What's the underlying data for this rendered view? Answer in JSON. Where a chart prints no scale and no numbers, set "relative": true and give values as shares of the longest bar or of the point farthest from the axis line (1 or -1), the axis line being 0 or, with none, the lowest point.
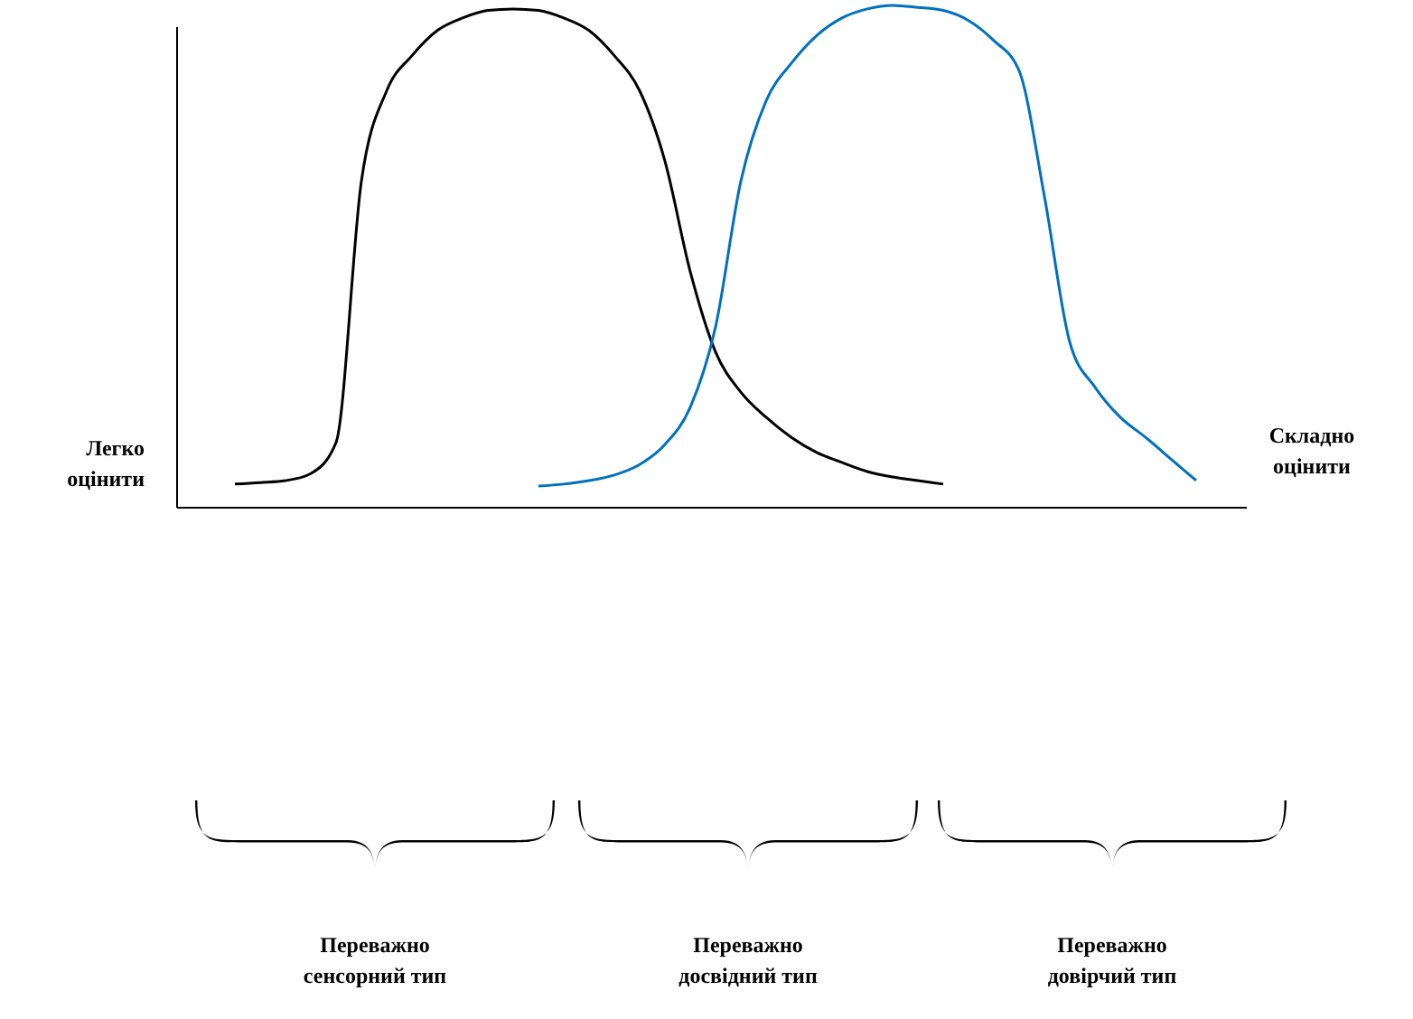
{
  "chart_data": {
    "type": "line",
    "relative": true,
    "categories": [
      null,
      null,
      null,
      null,
      null,
      null,
      null,
      null,
      null,
      null,
      null,
      null,
      null,
      null,
      null,
      null,
      null,
      null,
      null,
      null,
      null,
      null,
      null,
      null,
      null,
      null,
      null,
      null,
      null,
      null,
      null,
      null,
      null,
      null,
      null,
      null,
      null,
      null,
      null
    ],
    "series": [
      {
        "color": "#000000",
        "values": [
          0.047,
          0.05,
          0.054,
          0.068,
          0.13,
          0.65,
          0.83,
          0.9,
          0.95,
          0.975,
          0.99,
          0.993,
          0.99,
          0.975,
          0.95,
          0.9,
          0.83,
          0.69,
          0.47,
          0.31,
          0.23,
          0.18,
          0.14,
          0.11,
          0.09,
          0.072,
          0.061,
          0.054,
          0.047,
          null,
          null,
          null,
          null,
          null,
          null,
          null,
          null,
          null,
          null
        ]
      },
      {
        "color": "#0070c0",
        "values": [
          null,
          null,
          null,
          null,
          null,
          null,
          null,
          null,
          null,
          null,
          null,
          null,
          0.043,
          0.047,
          0.054,
          0.065,
          0.086,
          0.126,
          0.2,
          0.36,
          0.65,
          0.81,
          0.885,
          0.94,
          0.975,
          0.993,
          1,
          0.996,
          0.99,
          0.97,
          0.93,
          0.87,
          0.62,
          0.33,
          0.24,
          0.18,
          0.14,
          0.097,
          0.054
        ]
      }
    ],
    "annotations": [
      "Легко оцінити",
      "Складно оцінити",
      "Переважно сенсорний тип",
      "Переважно досвідний тип",
      "Переважно довірчий тип"
    ]
  }
}
